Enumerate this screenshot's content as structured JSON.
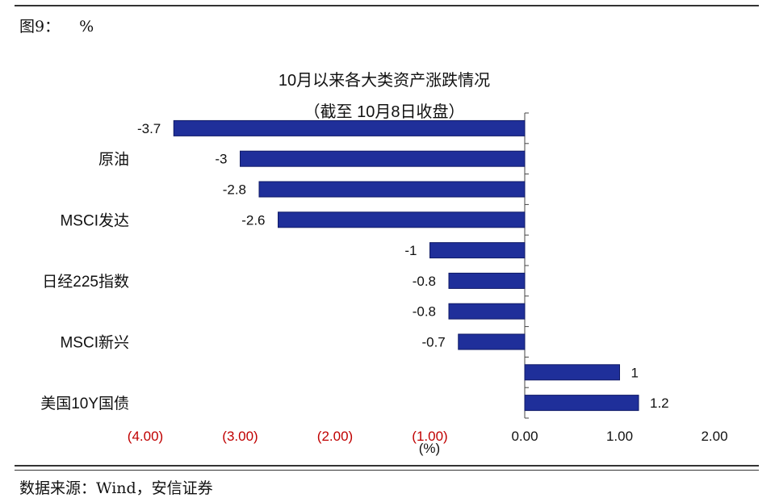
{
  "figure": {
    "label": "图9：",
    "unit": "%"
  },
  "source": "数据来源：Wind，安信证券",
  "chart_data": {
    "type": "bar",
    "orientation": "horizontal",
    "title": "10月以来各大类资产涨跌情况",
    "subtitle": "（截至 10月8日收盘）",
    "xlabel": "(%)",
    "xlim": [
      -4,
      2
    ],
    "x_ticks": [
      {
        "value": -4,
        "label": "(4.00)"
      },
      {
        "value": -3,
        "label": "(3.00)"
      },
      {
        "value": -2,
        "label": "(2.00)"
      },
      {
        "value": -1,
        "label": "(1.00)"
      },
      {
        "value": 0,
        "label": "0.00"
      },
      {
        "value": 1,
        "label": "1.00"
      },
      {
        "value": 2,
        "label": "2.00"
      }
    ],
    "negative_tick_color": "#c00000",
    "bar_color": "#1f2f9a",
    "bars": [
      {
        "category": "",
        "value": -3.7,
        "label": "-3.7"
      },
      {
        "category": "原油",
        "value": -3.0,
        "label": "-3"
      },
      {
        "category": "",
        "value": -2.8,
        "label": "-2.8"
      },
      {
        "category": "MSCI发达",
        "value": -2.6,
        "label": "-2.6"
      },
      {
        "category": "",
        "value": -1.0,
        "label": "-1"
      },
      {
        "category": "日经225指数",
        "value": -0.8,
        "label": "-0.8"
      },
      {
        "category": "",
        "value": -0.8,
        "label": "-0.8"
      },
      {
        "category": "MSCI新兴",
        "value": -0.7,
        "label": "-0.7"
      },
      {
        "category": "",
        "value": 1.0,
        "label": "1"
      },
      {
        "category": "美国10Y国债",
        "value": 1.2,
        "label": "1.2"
      }
    ]
  }
}
